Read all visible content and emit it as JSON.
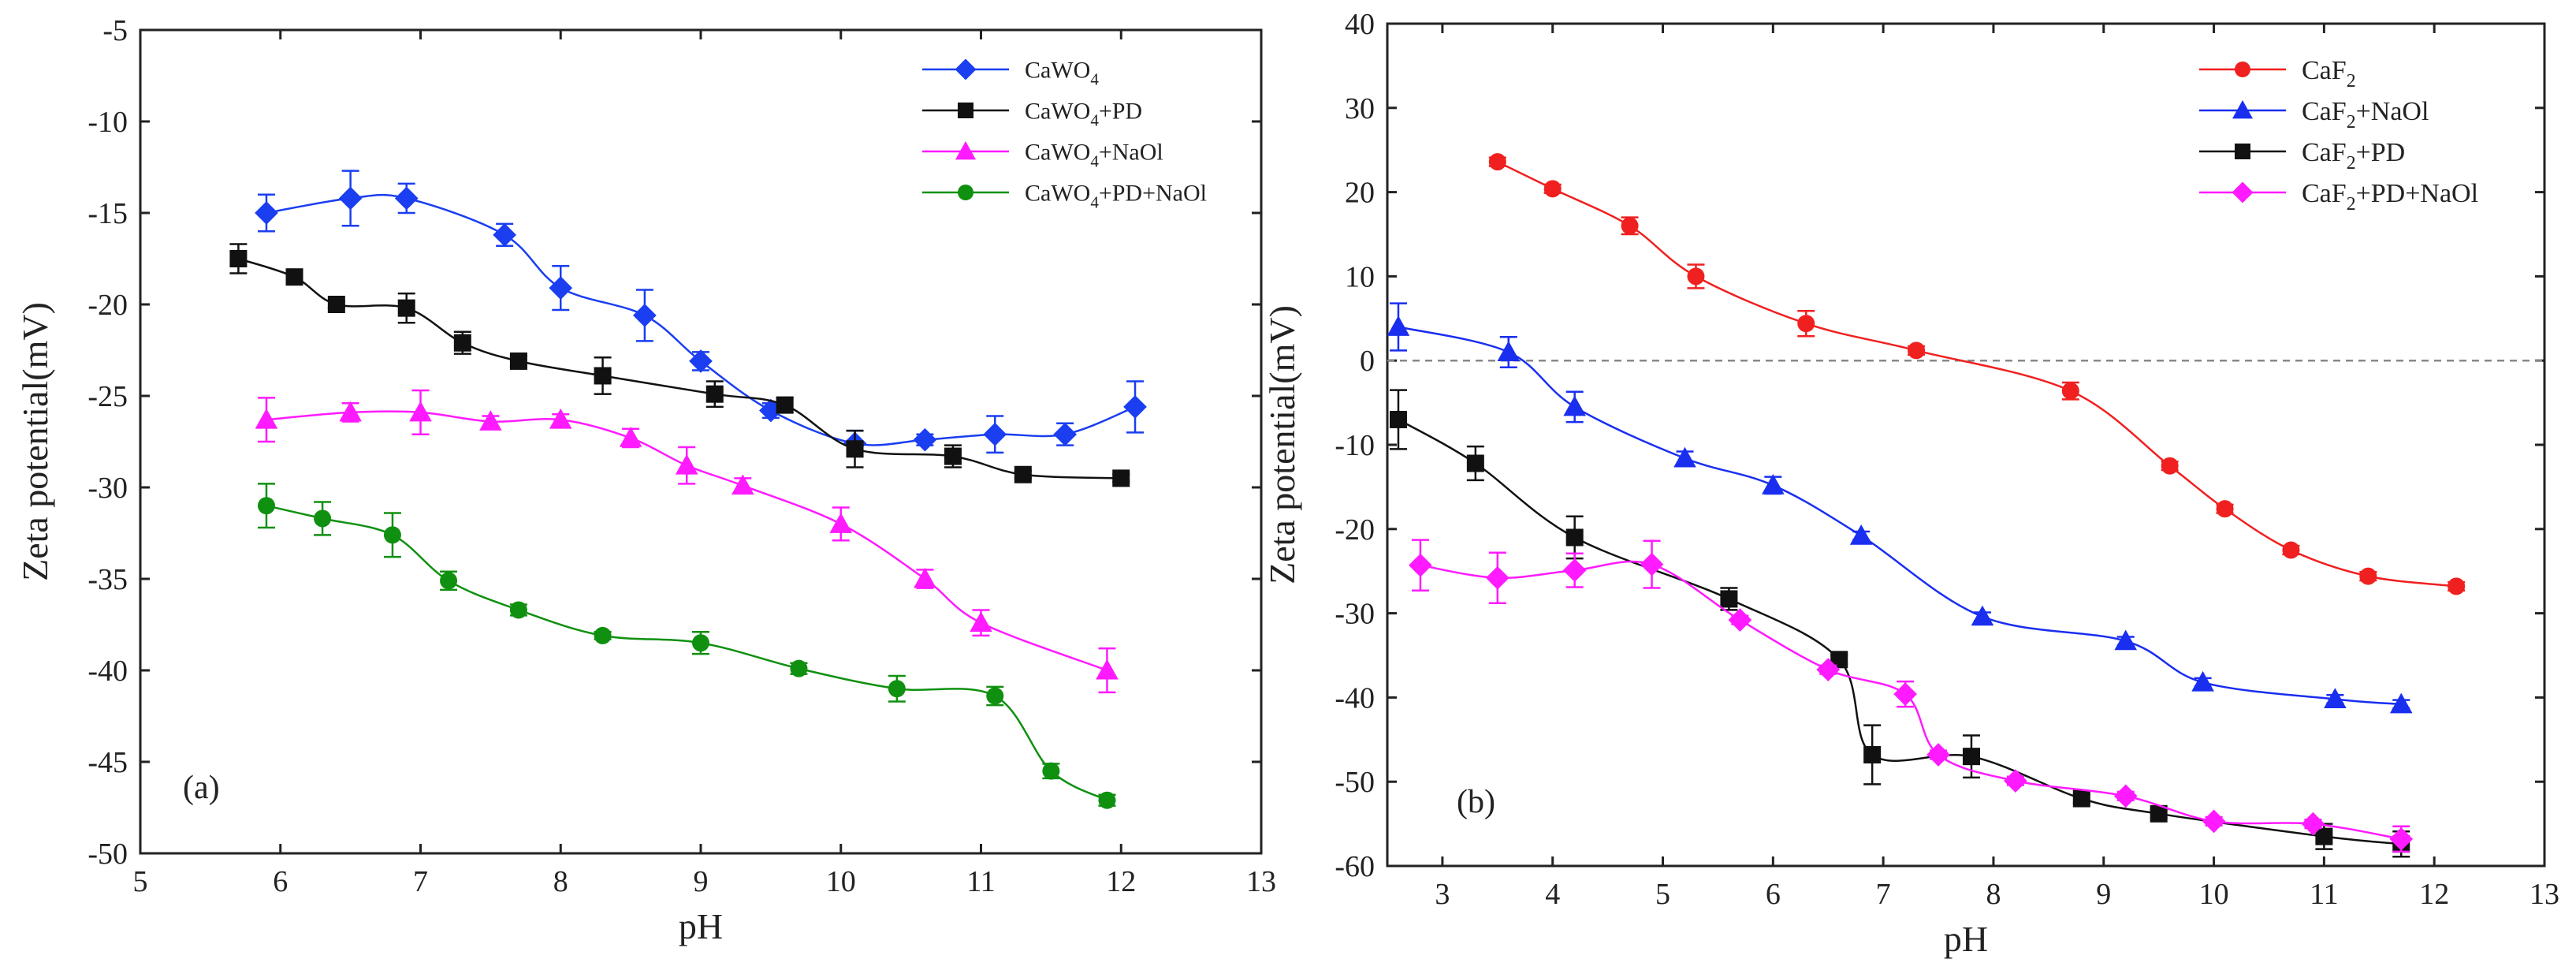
{
  "chart_data": [
    {
      "type": "line",
      "panel_label": "(a)",
      "xlabel": "pH",
      "ylabel": "Zeta potential(mV)",
      "xlim": [
        5,
        13
      ],
      "ylim": [
        -50,
        -5
      ],
      "xticks": [
        5,
        6,
        7,
        8,
        9,
        10,
        11,
        12,
        13
      ],
      "yticks": [
        -5,
        -10,
        -15,
        -20,
        -25,
        -30,
        -35,
        -40,
        -45,
        -50
      ],
      "legend_position": "top-right",
      "series": [
        {
          "name": "CaWO4",
          "legend_base": "CaWO",
          "legend_sub": "4",
          "legend_suffix": "",
          "color": "#1a3ef0",
          "marker": "diamond",
          "x": [
            5.9,
            6.5,
            6.9,
            7.6,
            8.0,
            8.6,
            9.0,
            9.5,
            10.1,
            10.6,
            11.1,
            11.6,
            12.1
          ],
          "y": [
            -15.0,
            -14.2,
            -14.2,
            -16.2,
            -19.1,
            -20.6,
            -23.1,
            -25.8,
            -27.6,
            -27.4,
            -27.1,
            -27.1,
            -25.6
          ],
          "err": [
            1.0,
            1.5,
            0.8,
            0.6,
            1.2,
            1.4,
            0.5,
            0.4,
            0.7,
            0.3,
            1.0,
            0.6,
            1.4
          ]
        },
        {
          "name": "CaWO4+PD",
          "legend_base": "CaWO",
          "legend_sub": "4",
          "legend_suffix": "+PD",
          "color": "#111111",
          "marker": "square",
          "x": [
            5.7,
            6.1,
            6.4,
            6.9,
            7.3,
            7.7,
            8.3,
            9.1,
            9.6,
            10.1,
            10.8,
            11.3,
            12.0
          ],
          "y": [
            -17.5,
            -18.5,
            -20.0,
            -20.2,
            -22.1,
            -23.1,
            -23.9,
            -24.9,
            -25.5,
            -27.9,
            -28.3,
            -29.3,
            -29.5
          ],
          "err": [
            0.8,
            0.3,
            0.2,
            0.8,
            0.6,
            0.3,
            1.0,
            0.7,
            0.4,
            1.0,
            0.6,
            0.2,
            0.2
          ]
        },
        {
          "name": "CaWO4+NaOl",
          "legend_base": "CaWO",
          "legend_sub": "4",
          "legend_suffix": "+NaOl",
          "color": "#ff1aff",
          "marker": "triangle",
          "x": [
            5.9,
            6.5,
            7.0,
            7.5,
            8.0,
            8.5,
            8.9,
            9.3,
            10.0,
            10.6,
            11.0,
            11.9
          ],
          "y": [
            -26.3,
            -25.9,
            -25.9,
            -26.4,
            -26.3,
            -27.3,
            -28.8,
            -29.9,
            -32.0,
            -35.0,
            -37.4,
            -40.0
          ],
          "err": [
            1.2,
            0.5,
            1.2,
            0.3,
            0.3,
            0.5,
            1.0,
            0.4,
            0.9,
            0.5,
            0.7,
            1.2
          ]
        },
        {
          "name": "CaWO4+PD+NaOl",
          "legend_base": "CaWO",
          "legend_sub": "4",
          "legend_suffix": "+PD+NaOl",
          "color": "#109010",
          "marker": "circle",
          "x": [
            5.9,
            6.3,
            6.8,
            7.2,
            7.7,
            8.3,
            9.0,
            9.7,
            10.4,
            11.1,
            11.5,
            11.9
          ],
          "y": [
            -31.0,
            -31.7,
            -32.6,
            -35.1,
            -36.7,
            -38.1,
            -38.5,
            -39.9,
            -41.0,
            -41.4,
            -45.5,
            -47.1
          ],
          "err": [
            1.2,
            0.9,
            1.2,
            0.5,
            0.3,
            0.2,
            0.6,
            0.3,
            0.7,
            0.5,
            0.4,
            0.3
          ]
        }
      ]
    },
    {
      "type": "line",
      "panel_label": "(b)",
      "xlabel": "pH",
      "ylabel": "Zeta potential(mV)",
      "xlim": [
        2.5,
        13
      ],
      "ylim": [
        -60,
        40
      ],
      "xticks": [
        3,
        4,
        5,
        6,
        7,
        8,
        9,
        10,
        11,
        12,
        13
      ],
      "yticks": [
        40,
        30,
        20,
        10,
        0,
        -10,
        -20,
        -30,
        -40,
        -50,
        -60
      ],
      "reference_line_y": 0,
      "legend_position": "top-right",
      "series": [
        {
          "name": "CaF2",
          "legend_base": "CaF",
          "legend_sub": "2",
          "legend_suffix": "",
          "color": "#f02020",
          "marker": "circle",
          "x": [
            3.5,
            4.0,
            4.7,
            5.3,
            6.3,
            7.3,
            8.7,
            9.6,
            10.1,
            10.7,
            11.4,
            12.2
          ],
          "y": [
            23.6,
            20.4,
            16.0,
            10.0,
            4.4,
            1.2,
            -3.6,
            -12.5,
            -17.6,
            -22.5,
            -25.6,
            -26.8
          ],
          "err": [
            0.5,
            0.5,
            1.0,
            1.4,
            1.5,
            0.5,
            1.0,
            0.5,
            0.5,
            0.5,
            0.5,
            0.5
          ]
        },
        {
          "name": "CaF2+NaOl",
          "legend_base": "CaF",
          "legend_sub": "2",
          "legend_suffix": "+NaOl",
          "color": "#1a2ef0",
          "marker": "triangle",
          "x": [
            2.6,
            3.6,
            4.2,
            5.2,
            6.0,
            6.8,
            7.9,
            9.2,
            9.9,
            11.1,
            11.7
          ],
          "y": [
            4.0,
            1.0,
            -5.5,
            -11.6,
            -14.8,
            -20.8,
            -30.4,
            -33.3,
            -38.2,
            -40.2,
            -40.8
          ],
          "err": [
            2.8,
            1.8,
            1.8,
            0.8,
            1.0,
            0.5,
            0.5,
            0.5,
            0.5,
            0.5,
            0.5
          ]
        },
        {
          "name": "CaF2+PD",
          "legend_base": "CaF",
          "legend_sub": "2",
          "legend_suffix": "+PD",
          "color": "#111111",
          "marker": "square",
          "x": [
            2.6,
            3.3,
            4.2,
            5.6,
            6.6,
            6.9,
            7.8,
            8.8,
            9.5,
            11.0,
            11.7
          ],
          "y": [
            -7.0,
            -12.2,
            -21.0,
            -28.3,
            -35.5,
            -46.8,
            -47.0,
            -52.0,
            -53.8,
            -56.5,
            -57.4
          ],
          "err": [
            3.5,
            2.0,
            2.5,
            1.3,
            0.5,
            3.5,
            2.5,
            0.5,
            0.5,
            1.5,
            1.5
          ]
        },
        {
          "name": "CaF2+PD+NaOl",
          "legend_base": "CaF",
          "legend_sub": "2",
          "legend_suffix": "+PD+NaOl",
          "color": "#ff1aff",
          "marker": "diamond",
          "x": [
            2.8,
            3.5,
            4.2,
            4.9,
            5.7,
            6.5,
            7.2,
            7.5,
            8.2,
            9.2,
            10.0,
            10.9,
            11.7
          ],
          "y": [
            -24.3,
            -25.8,
            -24.9,
            -24.2,
            -30.8,
            -36.7,
            -39.6,
            -46.8,
            -49.9,
            -51.7,
            -54.7,
            -55.0,
            -56.8
          ],
          "err": [
            3.0,
            3.0,
            2.0,
            2.8,
            0.5,
            0.5,
            1.5,
            0.5,
            0.5,
            0.5,
            0.5,
            0.5,
            1.5
          ]
        }
      ]
    }
  ]
}
